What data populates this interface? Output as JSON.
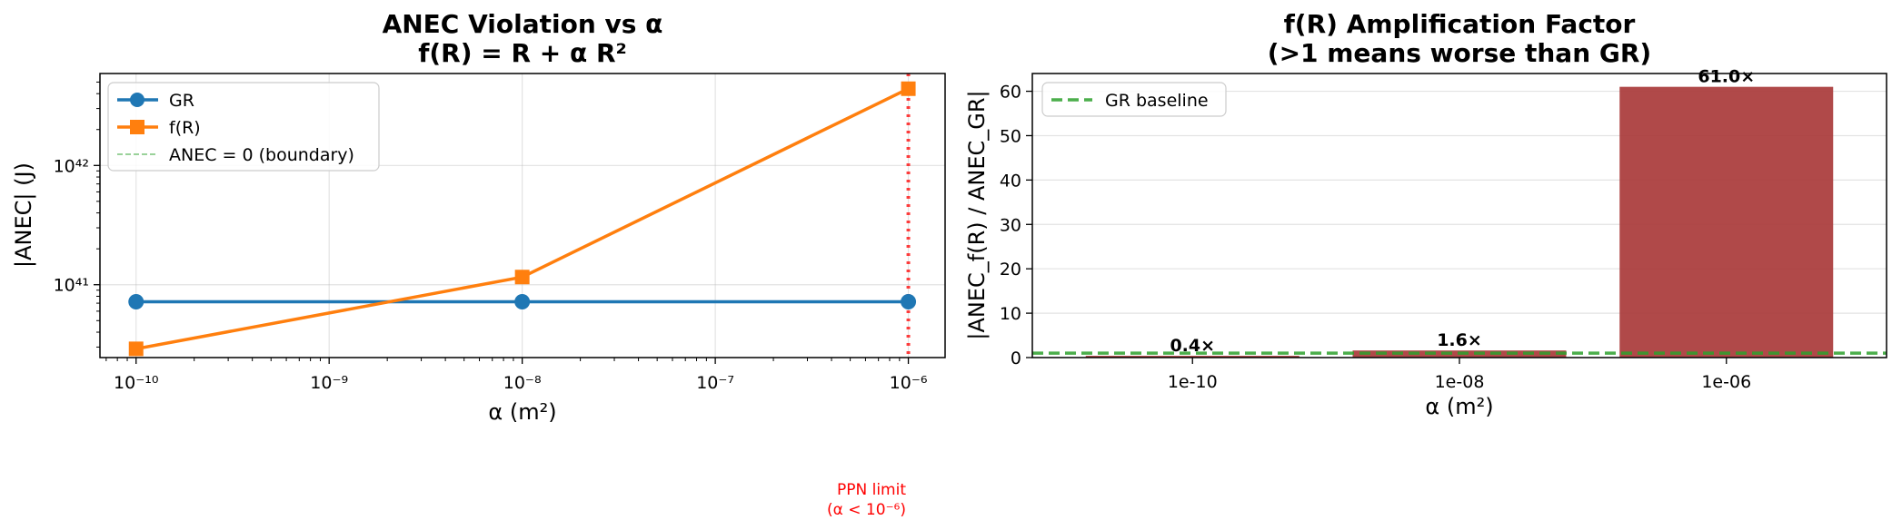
{
  "chart_data": [
    {
      "type": "line",
      "title": "ANEC Violation vs α",
      "subtitle": "f(R) = R + α R²",
      "xlabel": "α (m²)",
      "ylabel": "|ANEC| (J)",
      "xscale": "log",
      "yscale": "log",
      "x": [
        1e-10,
        1e-08,
        1e-06
      ],
      "xlim": [
        6.5e-11,
        1.55e-06
      ],
      "ylim": [
        2.45e+40,
        5.9e+42
      ],
      "x_tick_labels": [
        "10⁻¹⁰",
        "10⁻⁹",
        "10⁻⁸",
        "10⁻⁷",
        "10⁻⁶"
      ],
      "x_tick_values": [
        1e-10,
        1e-09,
        1e-08,
        1e-07,
        1e-06
      ],
      "y_tick_labels": [
        "10⁴¹",
        "10⁴²"
      ],
      "y_tick_values": [
        1e+41,
        1e+42
      ],
      "grid": true,
      "legend_position": "upper-left",
      "series": [
        {
          "name": "GR",
          "values": [
            7.2e+40,
            7.2e+40,
            7.2e+40
          ],
          "color": "#1f77b4",
          "marker": "circle"
        },
        {
          "name": "f(R)",
          "values": [
            2.9e+40,
            1.16e+41,
            4.4e+42
          ],
          "color": "#ff7f0e",
          "marker": "square"
        }
      ],
      "reference_lines": [
        {
          "name": "ANEC = 0 (boundary)",
          "orientation": "horizontal",
          "y": 0,
          "color": "#2ca02c",
          "style": "dashed"
        },
        {
          "orientation": "vertical",
          "x": 1e-06,
          "color": "#ff0000",
          "style": "dotted"
        }
      ],
      "annotation": {
        "line1": "PPN limit",
        "line2": "(α < 10⁻⁶)",
        "color": "#ff0000"
      }
    },
    {
      "type": "bar",
      "title": "f(R) Amplification Factor",
      "subtitle": "(>1 means worse than GR)",
      "xlabel": "α (m²)",
      "ylabel": "|ANEC_f(R) / ANEC_GR|",
      "categories": [
        "1e-10",
        "1e-08",
        "1e-06"
      ],
      "values": [
        0.4,
        1.6,
        61.0
      ],
      "value_labels": [
        "0.4×",
        "1.6×",
        "61.0×"
      ],
      "bar_color": "#a93a3a",
      "ylim": [
        0,
        64
      ],
      "y_tick_values": [
        0,
        10,
        20,
        30,
        40,
        50,
        60
      ],
      "y_tick_labels": [
        "0",
        "10",
        "20",
        "30",
        "40",
        "50",
        "60"
      ],
      "grid": true,
      "legend_position": "upper-left",
      "baseline": {
        "name": "GR baseline",
        "y": 1,
        "color": "#2ca02c",
        "style": "dashed"
      }
    }
  ]
}
